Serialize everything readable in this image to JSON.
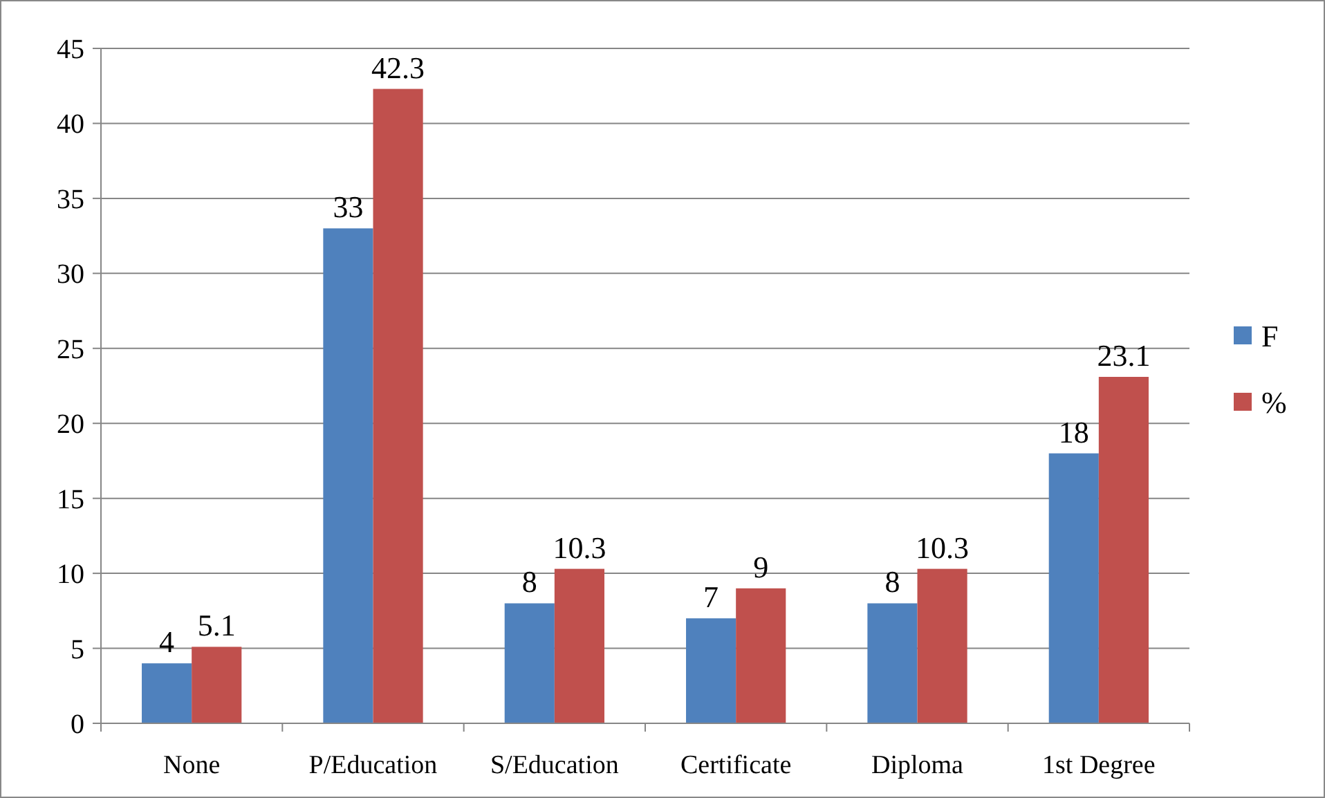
{
  "chart_data": {
    "type": "bar",
    "categories": [
      "None",
      "P/Education",
      "S/Education",
      "Certificate",
      "Diploma",
      "1st Degree"
    ],
    "series": [
      {
        "name": "F",
        "color": "#4f81bd",
        "values": [
          4,
          33,
          8,
          7,
          8,
          18
        ]
      },
      {
        "name": "%",
        "color": "#c0504d",
        "values": [
          5.1,
          42.3,
          10.3,
          9,
          10.3,
          23.1
        ]
      }
    ],
    "ylim": [
      0,
      45
    ],
    "yticks": [
      0,
      5,
      10,
      15,
      20,
      25,
      30,
      35,
      40,
      45
    ],
    "grid": "y",
    "legend": "right",
    "data_labels": true
  }
}
